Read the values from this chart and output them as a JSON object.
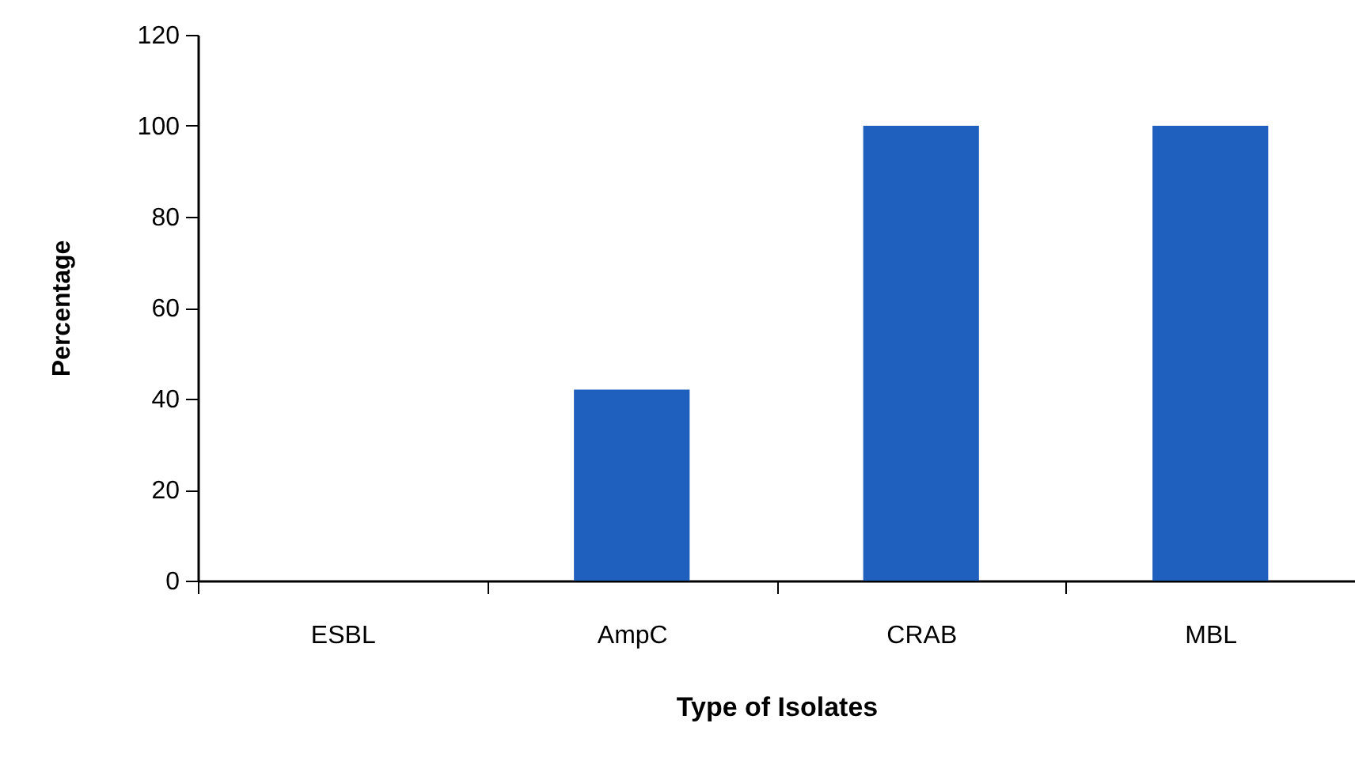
{
  "chart_data": {
    "type": "bar",
    "xlabel": "Type of Isolates",
    "ylabel": "Percentage",
    "categories": [
      "ESBL",
      "AmpC",
      "CRAB",
      "MBL"
    ],
    "values": [
      0,
      42,
      100,
      100
    ],
    "color": "#1f5fbd",
    "ylim": [
      0,
      120
    ],
    "yticks": [
      0,
      20,
      40,
      60,
      80,
      100,
      120
    ],
    "grid": false,
    "legend": false
  }
}
